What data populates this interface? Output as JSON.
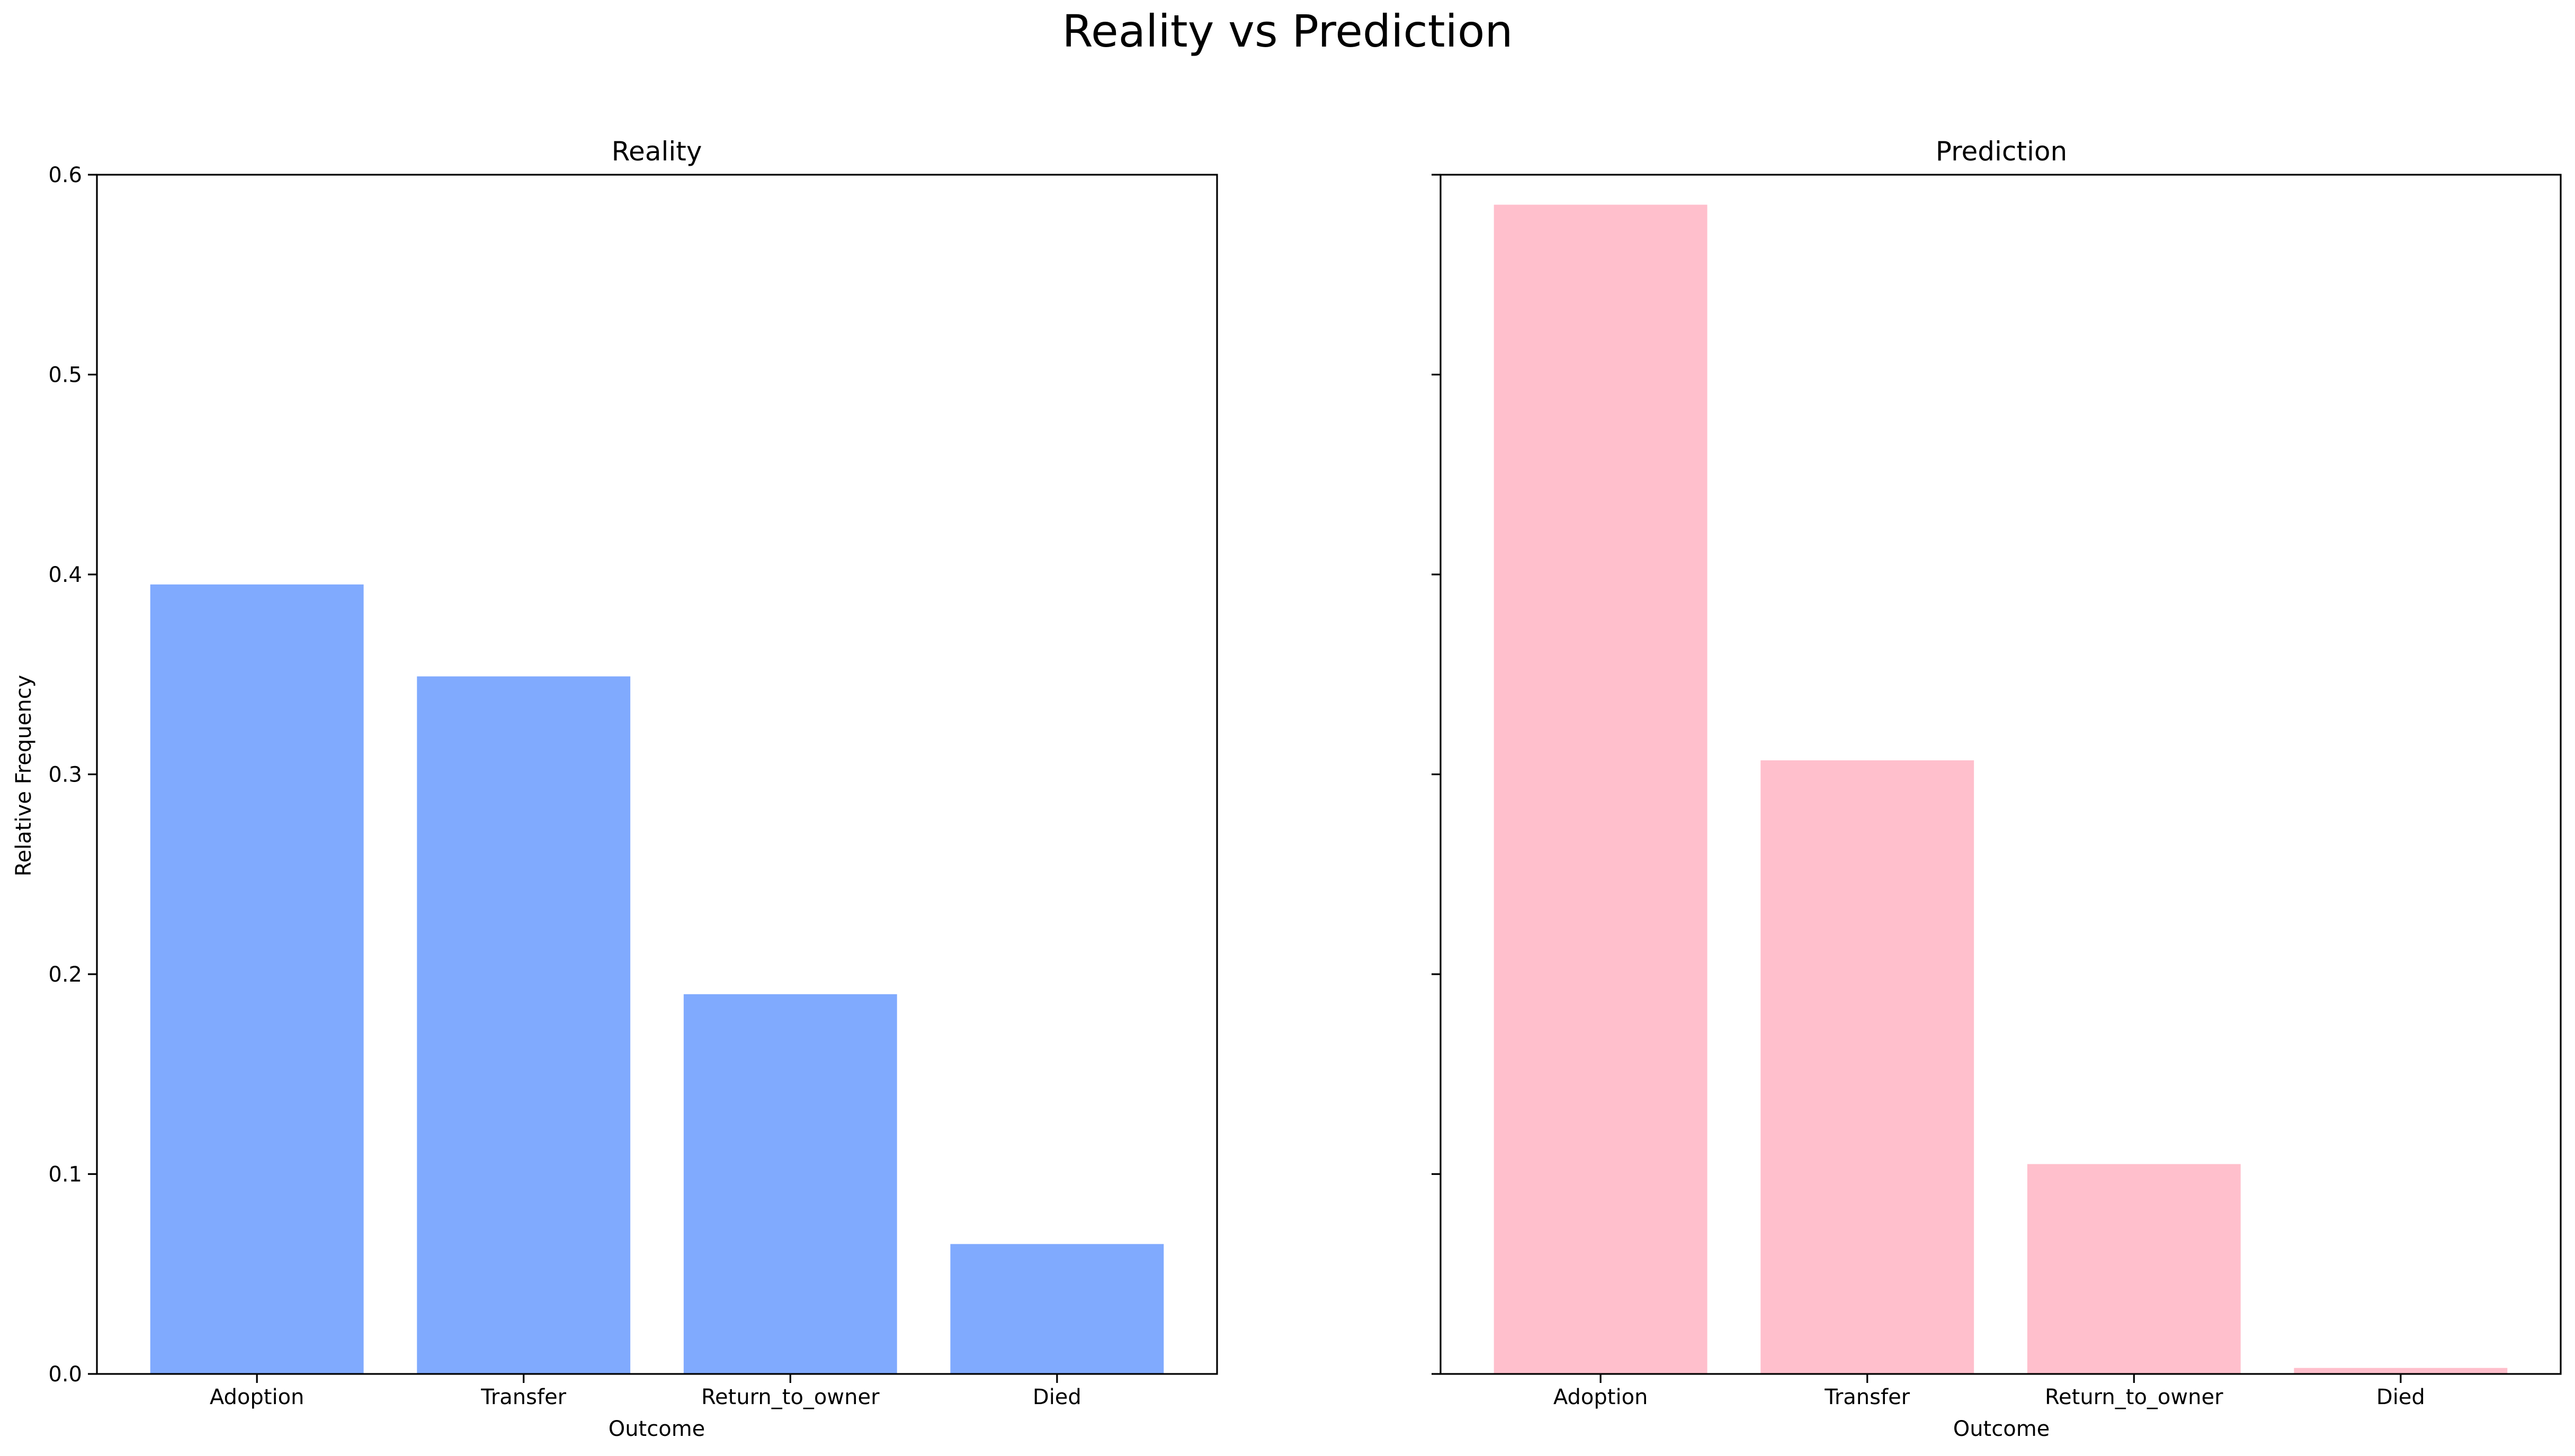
{
  "figure": {
    "title": "Reality vs Prediction"
  },
  "chart_data": [
    {
      "type": "bar",
      "title": "Reality",
      "xlabel": "Outcome",
      "ylabel": "Relative Frequency",
      "categories": [
        "Adoption",
        "Transfer",
        "Return_to_owner",
        "Died"
      ],
      "values": [
        0.395,
        0.349,
        0.19,
        0.065
      ],
      "ylim": [
        0,
        0.6
      ],
      "yticks": [
        0.0,
        0.1,
        0.2,
        0.3,
        0.4,
        0.5,
        0.6
      ],
      "ytick_labels": [
        "0.0",
        "0.1",
        "0.2",
        "0.3",
        "0.4",
        "0.5",
        "0.6"
      ],
      "color": "#80aafe",
      "grid": false
    },
    {
      "type": "bar",
      "title": "Prediction",
      "xlabel": "Outcome",
      "ylabel": "",
      "categories": [
        "Adoption",
        "Transfer",
        "Return_to_owner",
        "Died"
      ],
      "values": [
        0.585,
        0.307,
        0.105,
        0.003
      ],
      "ylim": [
        0,
        0.6
      ],
      "yticks": [
        0.0,
        0.1,
        0.2,
        0.3,
        0.4,
        0.5,
        0.6
      ],
      "ytick_labels": [],
      "color": "#ffbfcc",
      "grid": false
    }
  ]
}
